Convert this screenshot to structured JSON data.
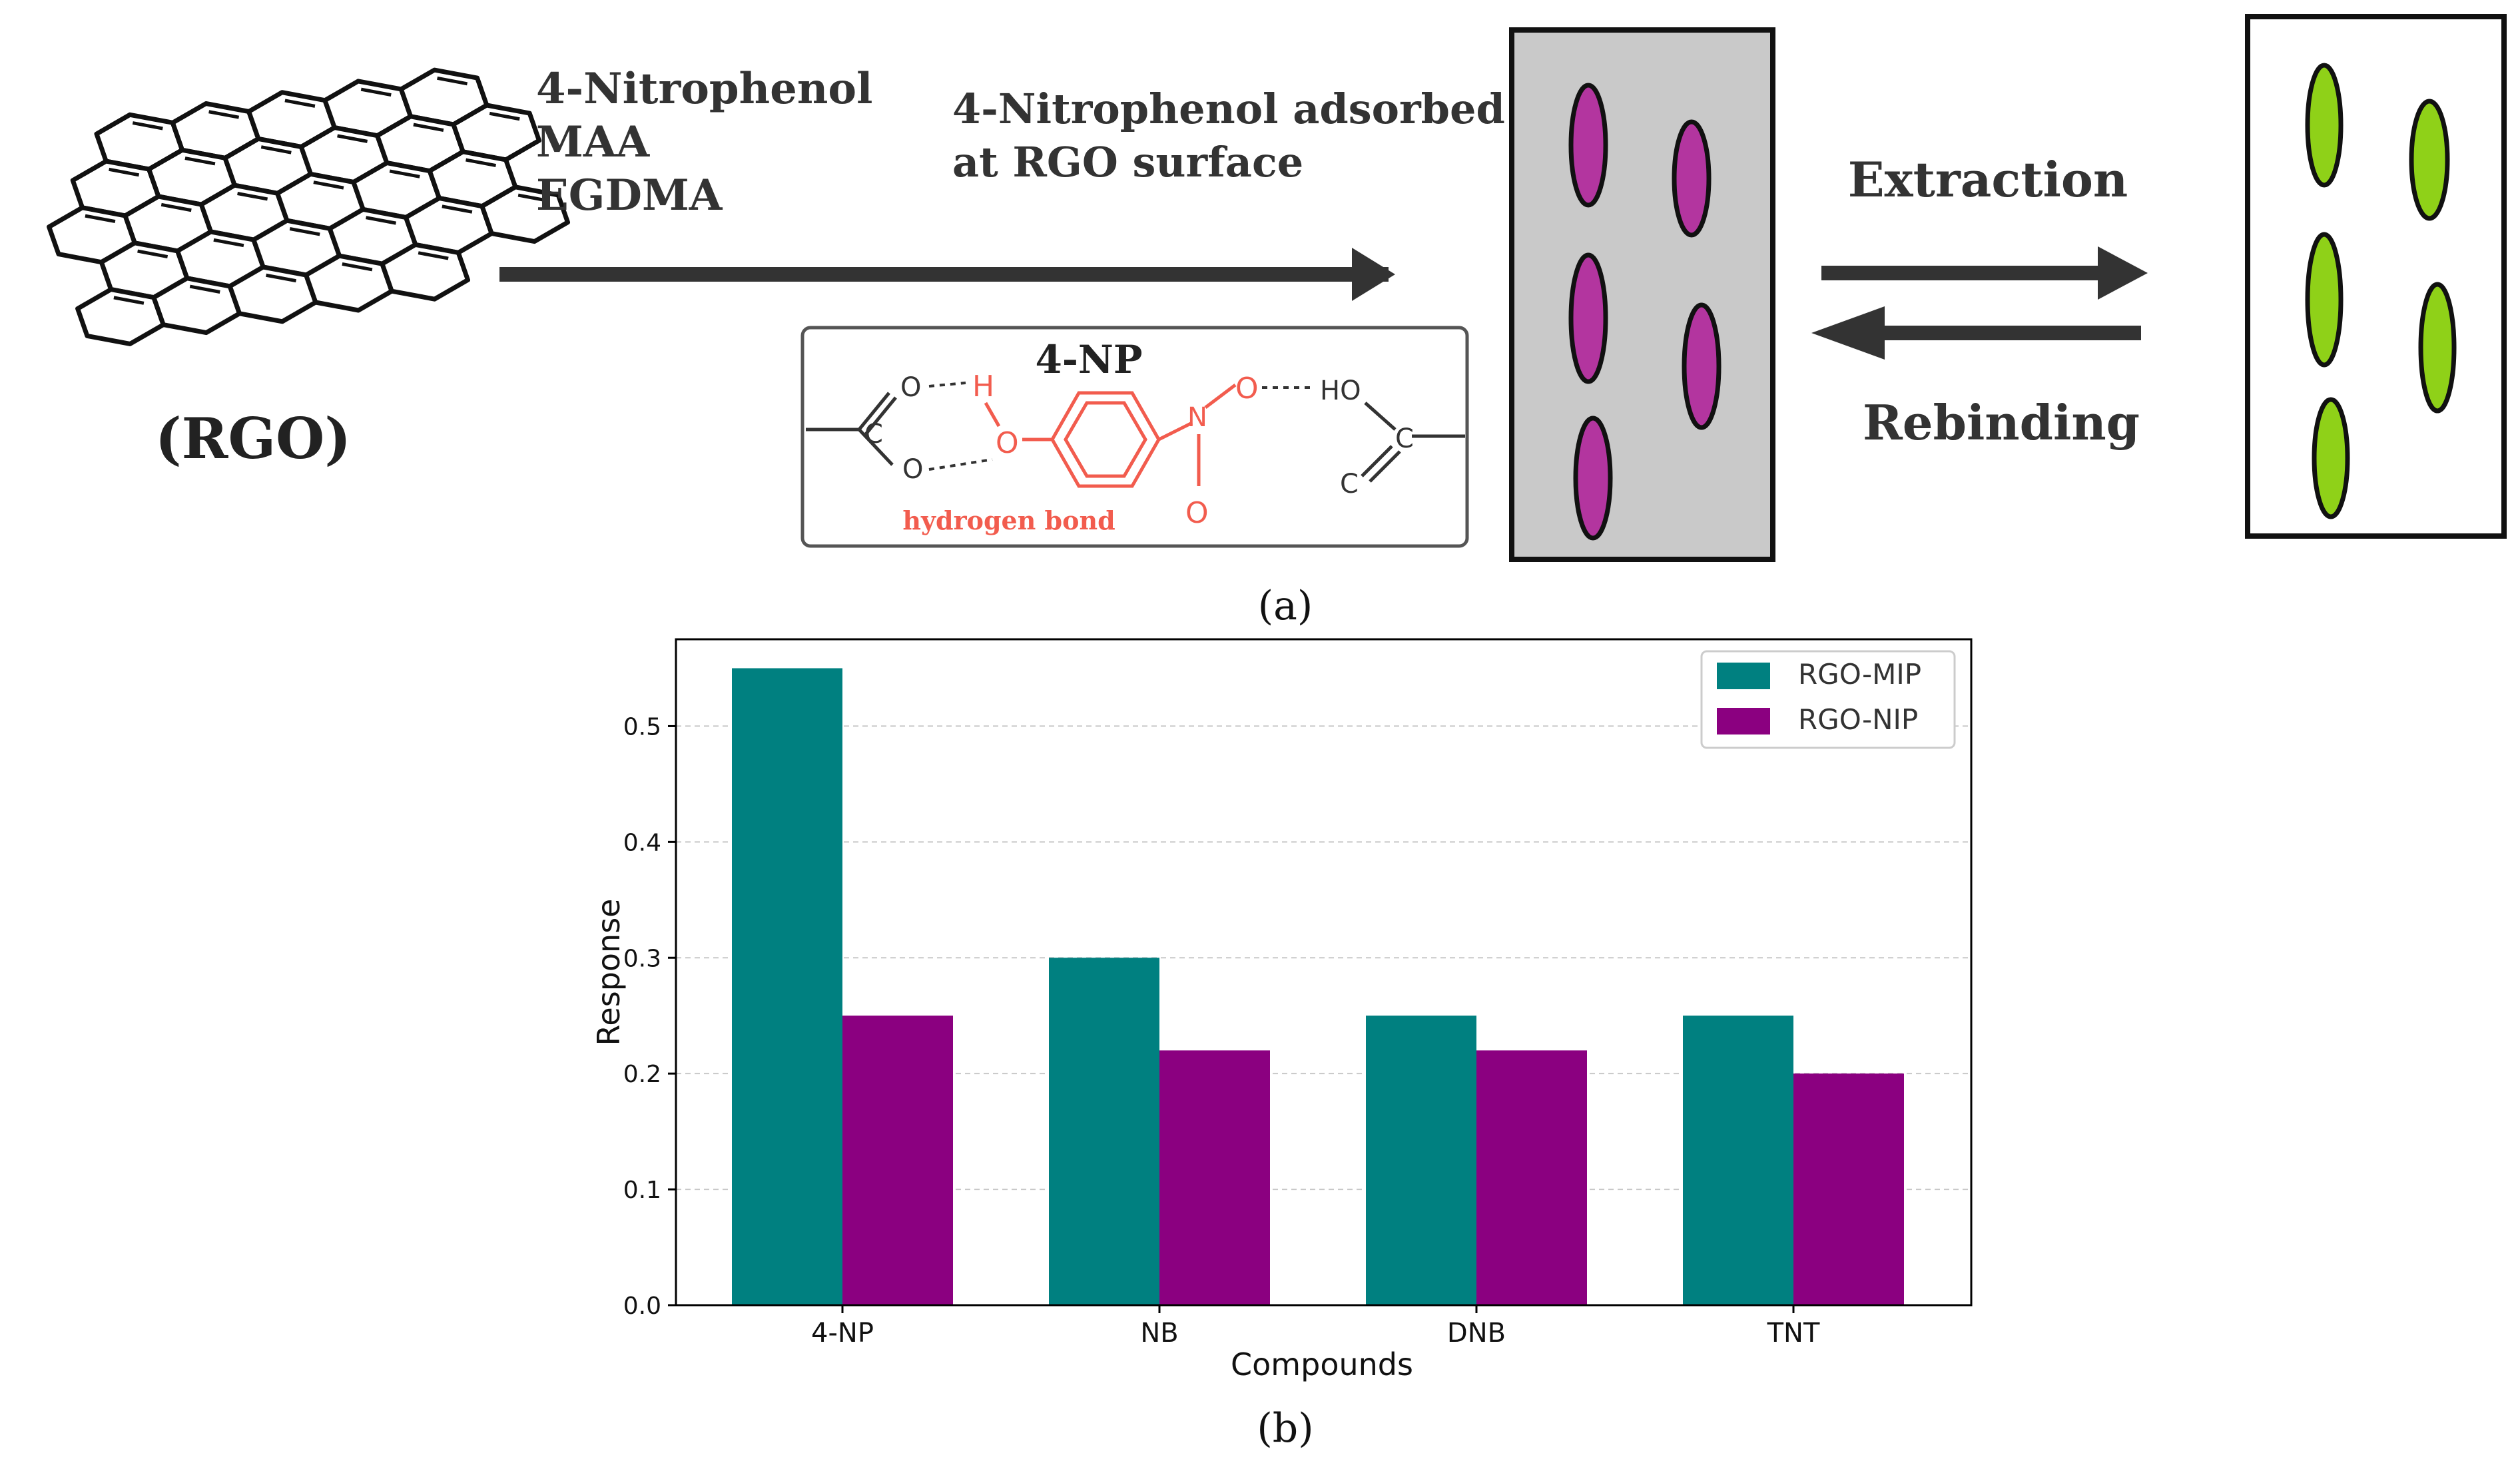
{
  "scheme": {
    "rgo_label": "(RGO)",
    "reagents": [
      "4-Nitrophenol",
      "MAA",
      "EGDMA"
    ],
    "adsorbed_text": [
      "4-Nitrophenol adsorbed",
      "at RGO surface"
    ],
    "extraction_label": "Extraction",
    "rebinding_label": "Rebinding",
    "inset": {
      "title": "4-NP",
      "hydrogen_bond_label": "hydrogen bond",
      "atoms": {
        "o": "O",
        "h": "H",
        "n": "N",
        "oh": "OH",
        "ho": "HO",
        "c": "C"
      }
    },
    "colors": {
      "template_fill": "#b3359f",
      "cavity_fill": "#8fd118",
      "panel_bg": "#c9c9c9",
      "molecule_red": "#f25c4e",
      "arrow": "#333333"
    }
  },
  "captions": {
    "a": "(a)",
    "b": "(b)"
  },
  "chart_data": {
    "type": "bar",
    "categories": [
      "4-NP",
      "NB",
      "DNB",
      "TNT"
    ],
    "series": [
      {
        "name": "RGO-MIP",
        "values": [
          0.55,
          0.3,
          0.25,
          0.25
        ],
        "color": "#008080"
      },
      {
        "name": "RGO-NIP",
        "values": [
          0.25,
          0.22,
          0.22,
          0.2
        ],
        "color": "#8b0080"
      }
    ],
    "xlabel": "Compounds",
    "ylabel": "Response",
    "ylim": [
      0,
      0.575
    ],
    "yticks": [
      "0.0",
      "0.1",
      "0.2",
      "0.3",
      "0.4",
      "0.5"
    ],
    "grid": true,
    "legend_position": "top-right"
  }
}
